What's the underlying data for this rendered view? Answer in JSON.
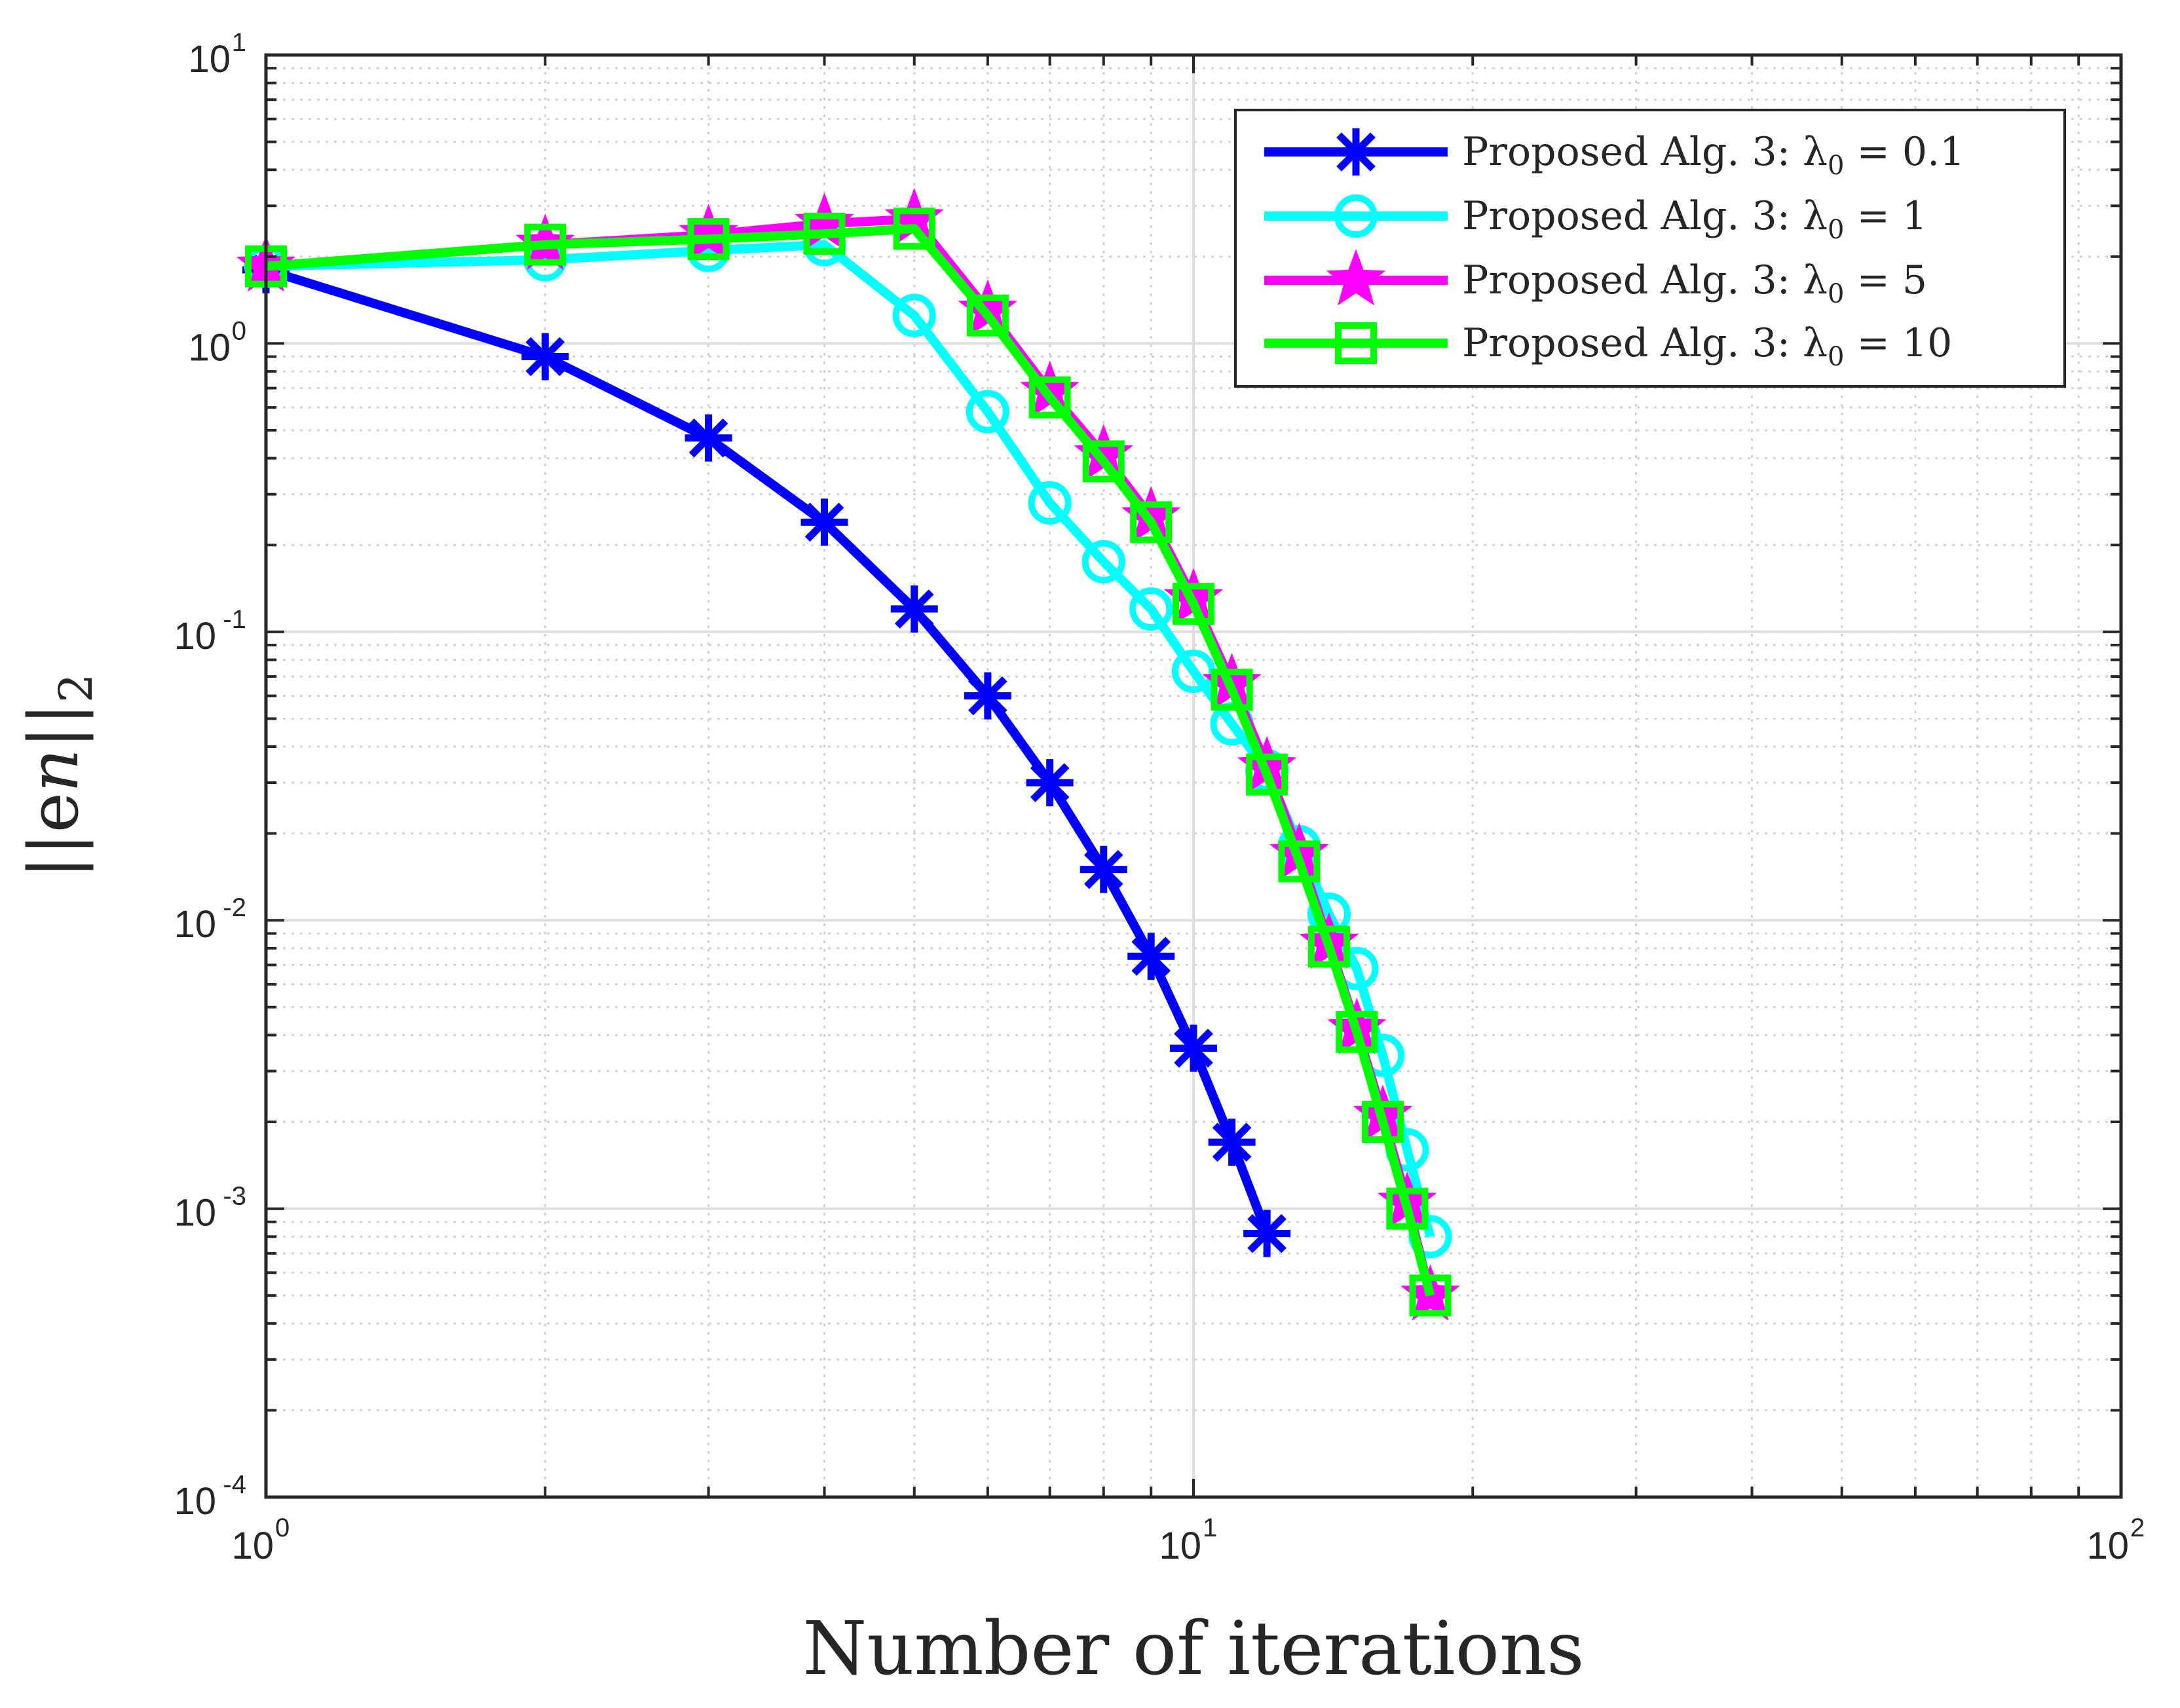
{
  "chart_data": {
    "type": "line",
    "xscale": "log",
    "yscale": "log",
    "xlim": [
      1,
      100
    ],
    "ylim": [
      0.0001,
      10
    ],
    "grid": true,
    "legend_position": "top-right",
    "xlabel": "Number of iterations",
    "ylabel": {
      "main": "||e",
      "sub_italic": "n",
      "suffix": "||",
      "subscript": "2"
    },
    "x_ticks": [
      {
        "base": "10",
        "exp": "0",
        "value": 1
      },
      {
        "base": "10",
        "exp": "1",
        "value": 10
      },
      {
        "base": "10",
        "exp": "2",
        "value": 100
      }
    ],
    "y_ticks": [
      {
        "base": "10",
        "exp": "1",
        "value": 10
      },
      {
        "base": "10",
        "exp": "0",
        "value": 1
      },
      {
        "base": "10",
        "exp": "-1",
        "value": 0.1
      },
      {
        "base": "10",
        "exp": "-2",
        "value": 0.01
      },
      {
        "base": "10",
        "exp": "-3",
        "value": 0.001
      },
      {
        "base": "10",
        "exp": "-4",
        "value": 0.0001
      }
    ],
    "series": [
      {
        "name": "Proposed Alg. 3: λ0 = 0.1",
        "legend_prefix": "Proposed Alg. 3: λ",
        "legend_sub": "0",
        "legend_suffix": " = 0.1",
        "color": "#0000ff",
        "marker": "asterisk",
        "x": [
          1,
          2,
          3,
          4,
          5,
          6,
          7,
          8,
          9,
          10,
          11,
          12
        ],
        "y": [
          1.8,
          0.9,
          0.47,
          0.24,
          0.12,
          0.06,
          0.03,
          0.015,
          0.0075,
          0.0036,
          0.0017,
          0.00082
        ]
      },
      {
        "name": "Proposed Alg. 3: λ0 = 1",
        "legend_prefix": "Proposed Alg. 3: λ",
        "legend_sub": "0",
        "legend_suffix": " = 1",
        "color": "#00ffff",
        "marker": "circle",
        "x": [
          1,
          2,
          3,
          4,
          5,
          6,
          7,
          8,
          9,
          10,
          11,
          12,
          13,
          14,
          15,
          16,
          17,
          18
        ],
        "y": [
          1.85,
          1.95,
          2.1,
          2.2,
          1.25,
          0.58,
          0.28,
          0.175,
          0.12,
          0.073,
          0.048,
          0.033,
          0.018,
          0.0105,
          0.0068,
          0.0034,
          0.0016,
          0.0008
        ]
      },
      {
        "name": "Proposed Alg. 3: λ0 = 5",
        "legend_prefix": "Proposed Alg. 3: λ",
        "legend_sub": "0",
        "legend_suffix": " = 5",
        "color": "#ff00ff",
        "marker": "star",
        "x": [
          1,
          2,
          3,
          4,
          5,
          6,
          7,
          8,
          9,
          10,
          11,
          12,
          13,
          14,
          15,
          16,
          17,
          18
        ],
        "y": [
          1.85,
          2.2,
          2.38,
          2.6,
          2.7,
          1.3,
          0.68,
          0.41,
          0.25,
          0.13,
          0.066,
          0.034,
          0.017,
          0.0083,
          0.0042,
          0.0021,
          0.00105,
          0.0005
        ]
      },
      {
        "name": "Proposed Alg. 3: λ0 = 10",
        "legend_prefix": "Proposed Alg. 3: λ",
        "legend_sub": "0",
        "legend_suffix": " = 10",
        "color": "#00ff00",
        "marker": "square",
        "x": [
          1,
          2,
          3,
          4,
          5,
          6,
          7,
          8,
          9,
          10,
          11,
          12,
          13,
          14,
          15,
          16,
          17,
          18
        ],
        "y": [
          1.85,
          2.2,
          2.3,
          2.4,
          2.5,
          1.25,
          0.65,
          0.39,
          0.24,
          0.125,
          0.063,
          0.032,
          0.016,
          0.0081,
          0.0041,
          0.002,
          0.001,
          0.0005
        ]
      }
    ]
  }
}
